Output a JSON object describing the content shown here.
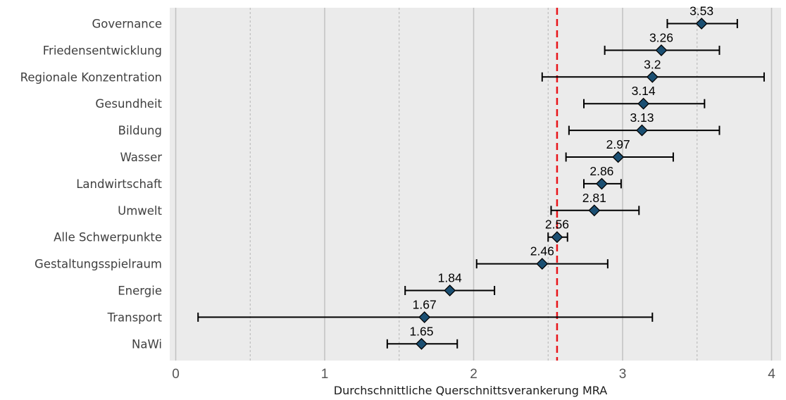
{
  "chart_data": {
    "type": "scatter",
    "orientation": "horizontal",
    "xlabel": "Durchschnittliche Querschnittsverankerung MRA",
    "xlim": [
      -0.03,
      4.1
    ],
    "xticks": [
      0,
      1,
      2,
      3,
      4
    ],
    "x_minor_gridlines": [
      0.5,
      1.5,
      2.5,
      3.5
    ],
    "grid": true,
    "reference_line": {
      "x": 2.56,
      "style": "dashed",
      "color": "#e8141a"
    },
    "categories": [
      "Governance",
      "Friedensentwicklung",
      "Regionale Konzentration",
      "Gesundheit",
      "Bildung",
      "Wasser",
      "Landwirtschaft",
      "Umwelt",
      "Alle Schwerpunkte",
      "Gestaltungsspielraum",
      "Energie",
      "Transport",
      "NaWi"
    ],
    "values": [
      3.53,
      3.26,
      3.2,
      3.14,
      3.13,
      2.97,
      2.86,
      2.81,
      2.56,
      2.46,
      1.84,
      1.67,
      1.65
    ],
    "value_labels": [
      "3.53",
      "3.26",
      "3.2",
      "3.14",
      "3.13",
      "2.97",
      "2.86",
      "2.81",
      "2.56",
      "2.46",
      "1.84",
      "1.67",
      "1.65"
    ],
    "error_low": [
      3.3,
      2.88,
      2.46,
      2.74,
      2.64,
      2.62,
      2.74,
      2.52,
      2.5,
      2.02,
      1.54,
      0.15,
      1.42
    ],
    "error_high": [
      3.77,
      3.65,
      3.95,
      3.55,
      3.65,
      3.34,
      2.99,
      3.11,
      2.63,
      2.9,
      2.14,
      3.2,
      1.89
    ]
  },
  "colors": {
    "panel_background": "#ebebeb",
    "major_gridline": "#c2c2c2",
    "minor_gridline": "#b4b4b4",
    "marker_fill": "#1b4f72",
    "marker_stroke": "#000000",
    "error_bar": "#000000",
    "reference_line": "#e8141a"
  }
}
